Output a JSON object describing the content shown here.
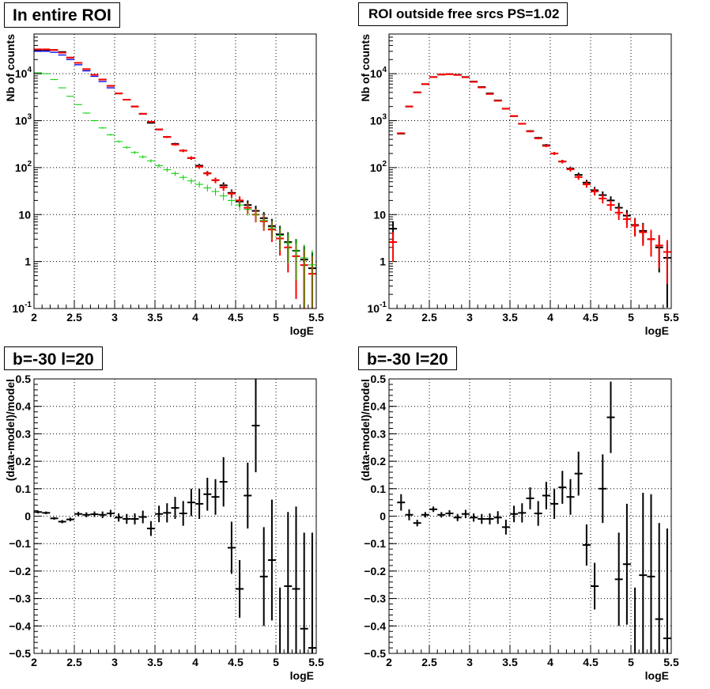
{
  "panels": {
    "top_left_title": "In entire ROI",
    "top_right_title": "ROI outside free srcs PS=1.02",
    "bottom_left_title": "b=-30 l=20",
    "bottom_right_title": "b=-30 l=20"
  },
  "colors": {
    "data": "#000000",
    "model": "#ff0000",
    "component_blue": "#0000ff",
    "component_green": "#00cc00"
  },
  "chart_data": [
    {
      "type": "scatter",
      "title": "In entire ROI",
      "xlabel": "logE",
      "ylabel": "Nb of counts",
      "xlim": [
        2,
        5.5
      ],
      "ylim": [
        0.1,
        70000
      ],
      "yscale": "log",
      "grid": true,
      "x_ticks": [
        "2",
        "2.5",
        "3",
        "3.5",
        "4",
        "4.5",
        "5",
        "5.5"
      ],
      "y_ticks": [
        "10^-1",
        "1",
        "10",
        "10^2",
        "10^3",
        "10^4"
      ],
      "series": [
        {
          "color": "#000000",
          "style": "error-bars",
          "x": [
            2.05,
            2.15,
            2.25,
            2.35,
            2.45,
            2.55,
            2.65,
            2.75,
            2.85,
            2.95,
            3.05,
            3.15,
            3.25,
            3.35,
            3.45,
            3.55,
            3.65,
            3.75,
            3.85,
            3.95,
            4.05,
            4.15,
            4.25,
            4.35,
            4.45,
            4.55,
            4.65,
            4.75,
            4.85,
            4.95,
            5.05,
            5.15,
            5.25,
            5.35,
            5.45
          ],
          "y": [
            31000,
            32000,
            32000,
            29000,
            22000,
            17000,
            12500,
            9500,
            7500,
            5500,
            3800,
            2800,
            2000,
            1400,
            900,
            650,
            450,
            320,
            230,
            160,
            110,
            76,
            54,
            42,
            29,
            19,
            16,
            12,
            8.4,
            5.7,
            3.8,
            2.6,
            1.7,
            1.1,
            0.72
          ]
        },
        {
          "color": "#ff0000",
          "style": "error-bars",
          "x": [
            2.05,
            2.15,
            2.25,
            2.35,
            2.45,
            2.55,
            2.65,
            2.75,
            2.85,
            2.95,
            3.05,
            3.15,
            3.25,
            3.35,
            3.45,
            3.55,
            3.65,
            3.75,
            3.85,
            3.95,
            4.05,
            4.15,
            4.25,
            4.35,
            4.45,
            4.55,
            4.65,
            4.75,
            4.85,
            4.95,
            5.05,
            5.15,
            5.25,
            5.35,
            5.45
          ],
          "y": [
            33000,
            33000,
            32000,
            28000,
            22000,
            17000,
            12500,
            9500,
            7500,
            5500,
            3800,
            2800,
            2000,
            1400,
            950,
            650,
            450,
            310,
            230,
            160,
            105,
            75,
            54,
            38,
            28,
            20,
            14,
            10,
            7.2,
            4.8,
            3.1,
            2.0,
            1.3,
            0.84,
            0.55
          ]
        },
        {
          "color": "#0000ff",
          "style": "steps",
          "x": [
            2.05,
            2.15,
            2.25,
            2.35,
            2.45,
            2.55,
            2.65,
            2.75,
            2.85,
            2.95
          ],
          "y": [
            30000,
            30000,
            28500,
            25000,
            20000,
            15500,
            11500,
            8800,
            6800,
            5000
          ]
        },
        {
          "color": "#00cc00",
          "style": "error-bars",
          "x": [
            2.05,
            2.15,
            2.25,
            2.35,
            2.45,
            2.55,
            2.65,
            2.75,
            2.85,
            2.95,
            3.05,
            3.15,
            3.25,
            3.35,
            3.45,
            3.55,
            3.65,
            3.75,
            3.85,
            3.95,
            4.05,
            4.15,
            4.25,
            4.35,
            4.45,
            4.55,
            4.65,
            4.75,
            4.85,
            4.95,
            5.05,
            5.15,
            5.25,
            5.35,
            5.45
          ],
          "y": [
            10500,
            10000,
            7500,
            5000,
            3300,
            2200,
            1450,
            1000,
            700,
            500,
            360,
            270,
            210,
            170,
            140,
            110,
            90,
            75,
            62,
            52,
            44,
            37,
            31,
            25,
            20,
            16,
            13,
            10,
            7.5,
            5.2,
            3.6,
            2.5,
            1.7,
            1.2,
            0.85
          ]
        }
      ]
    },
    {
      "type": "scatter",
      "title": "ROI outside free srcs PS=1.02",
      "xlabel": "logE",
      "ylabel": "Nb of counts",
      "xlim": [
        2,
        5.5
      ],
      "ylim": [
        0.1,
        70000
      ],
      "yscale": "log",
      "grid": true,
      "x_ticks": [
        "2",
        "2.5",
        "3",
        "3.5",
        "4",
        "4.5",
        "5",
        "5.5"
      ],
      "y_ticks": [
        "10^-1",
        "1",
        "10",
        "10^2",
        "10^3",
        "10^4"
      ],
      "series": [
        {
          "color": "#000000",
          "style": "error-bars",
          "x": [
            2.05,
            2.15,
            2.25,
            2.35,
            2.45,
            2.55,
            2.65,
            2.75,
            2.85,
            2.95,
            3.05,
            3.15,
            3.25,
            3.35,
            3.45,
            3.55,
            3.65,
            3.75,
            3.85,
            3.95,
            4.05,
            4.15,
            4.25,
            4.35,
            4.45,
            4.55,
            4.65,
            4.75,
            4.85,
            4.95,
            5.05,
            5.15,
            5.25,
            5.35,
            5.45
          ],
          "y": [
            5,
            530,
            2000,
            4000,
            6000,
            8500,
            9600,
            9800,
            9500,
            8500,
            6800,
            5200,
            3800,
            2700,
            1800,
            1250,
            860,
            600,
            430,
            300,
            200,
            135,
            95,
            70,
            48,
            33,
            26,
            20,
            14,
            9.5,
            6.0,
            4.5,
            3.0,
            2.0,
            1.2
          ]
        },
        {
          "color": "#ff0000",
          "style": "error-bars",
          "x": [
            2.05,
            2.15,
            2.25,
            2.35,
            2.45,
            2.55,
            2.65,
            2.75,
            2.85,
            2.95,
            3.05,
            3.15,
            3.25,
            3.35,
            3.45,
            3.55,
            3.65,
            3.75,
            3.85,
            3.95,
            4.05,
            4.15,
            4.25,
            4.35,
            4.45,
            4.55,
            4.65,
            4.75,
            4.85,
            4.95,
            5.05,
            5.15,
            5.25,
            5.35,
            5.45
          ],
          "y": [
            2.6,
            540,
            2000,
            4000,
            6000,
            8500,
            9600,
            9800,
            9400,
            8400,
            6700,
            5100,
            3700,
            2650,
            1800,
            1250,
            860,
            590,
            420,
            290,
            200,
            135,
            92,
            63,
            44,
            31,
            22,
            16,
            11,
            8,
            5.8,
            4.2,
            3,
            2.2,
            1.6
          ]
        }
      ]
    },
    {
      "type": "scatter",
      "title": "b=-30 l=20",
      "xlabel": "logE",
      "ylabel": "(data-model)/model",
      "xlim": [
        2,
        5.5
      ],
      "ylim": [
        -0.5,
        0.5
      ],
      "grid": true,
      "x_ticks": [
        "2",
        "2.5",
        "3",
        "3.5",
        "4",
        "4.5",
        "5",
        "5.5"
      ],
      "y_ticks": [
        "-0.5",
        "-0.4",
        "-0.3",
        "-0.2",
        "-0.1",
        "0",
        "0.1",
        "0.2",
        "0.3",
        "0.4",
        "0.5"
      ],
      "series": [
        {
          "color": "#000000",
          "style": "error-bars",
          "x": [
            2.05,
            2.15,
            2.25,
            2.35,
            2.45,
            2.55,
            2.65,
            2.75,
            2.85,
            2.95,
            3.05,
            3.15,
            3.25,
            3.35,
            3.45,
            3.55,
            3.65,
            3.75,
            3.85,
            3.95,
            4.05,
            4.15,
            4.25,
            4.35,
            4.45,
            4.55,
            4.65,
            4.75,
            4.85,
            4.95,
            5.05,
            5.15,
            5.25,
            5.35,
            5.45
          ],
          "y": [
            0.015,
            0.012,
            -0.008,
            -0.02,
            -0.012,
            0.008,
            0.005,
            0.007,
            0.005,
            0.01,
            -0.005,
            -0.01,
            -0.01,
            -0.003,
            -0.045,
            0.008,
            0.012,
            0.03,
            0.01,
            0.05,
            0.045,
            0.08,
            0.07,
            0.125,
            -0.115,
            -0.265,
            0.075,
            0.33,
            -0.22,
            -0.16,
            -0.5,
            -0.255,
            -0.265,
            -0.41,
            -0.48
          ],
          "err": [
            0.005,
            0.005,
            0.005,
            0.006,
            0.007,
            0.008,
            0.009,
            0.01,
            0.012,
            0.013,
            0.015,
            0.018,
            0.02,
            0.023,
            0.027,
            0.03,
            0.035,
            0.04,
            0.045,
            0.05,
            0.055,
            0.06,
            0.065,
            0.09,
            0.095,
            0.105,
            0.12,
            0.17,
            0.18,
            0.22,
            0.24,
            0.27,
            0.3,
            0.35,
            0.42
          ]
        }
      ]
    },
    {
      "type": "scatter",
      "title": "b=-30 l=20",
      "xlabel": "logE",
      "ylabel": "(data-model)/model",
      "xlim": [
        2,
        5.5
      ],
      "ylim": [
        -0.5,
        0.5
      ],
      "grid": true,
      "x_ticks": [
        "2",
        "2.5",
        "3",
        "3.5",
        "4",
        "4.5",
        "5",
        "5.5"
      ],
      "y_ticks": [
        "-0.5",
        "-0.4",
        "-0.3",
        "-0.2",
        "-0.1",
        "0",
        "0.1",
        "0.2",
        "0.3",
        "0.4",
        "0.5"
      ],
      "series": [
        {
          "color": "#000000",
          "style": "error-bars",
          "x": [
            2.15,
            2.25,
            2.35,
            2.45,
            2.55,
            2.65,
            2.75,
            2.85,
            2.95,
            3.05,
            3.15,
            3.25,
            3.35,
            3.45,
            3.55,
            3.65,
            3.75,
            3.85,
            3.95,
            4.05,
            4.15,
            4.25,
            4.35,
            4.45,
            4.55,
            4.65,
            4.75,
            4.85,
            4.95,
            5.05,
            5.15,
            5.25,
            5.35,
            5.45
          ],
          "y": [
            0.05,
            0.005,
            -0.025,
            0.005,
            0.025,
            0.005,
            0.01,
            -0.005,
            0.008,
            -0.005,
            -0.01,
            -0.01,
            -0.005,
            -0.04,
            0.008,
            0.012,
            0.065,
            0.01,
            0.075,
            0.045,
            0.105,
            0.07,
            0.155,
            -0.105,
            -0.255,
            0.1,
            0.36,
            -0.23,
            -0.175,
            -0.5,
            -0.215,
            -0.22,
            -0.375,
            -0.445
          ],
          "err": [
            0.03,
            0.02,
            0.012,
            0.01,
            0.01,
            0.01,
            0.012,
            0.013,
            0.015,
            0.015,
            0.018,
            0.02,
            0.023,
            0.027,
            0.03,
            0.035,
            0.04,
            0.045,
            0.05,
            0.055,
            0.06,
            0.065,
            0.08,
            0.075,
            0.085,
            0.125,
            0.13,
            0.17,
            0.22,
            0.24,
            0.3,
            0.3,
            0.35,
            0.4
          ]
        }
      ]
    }
  ]
}
